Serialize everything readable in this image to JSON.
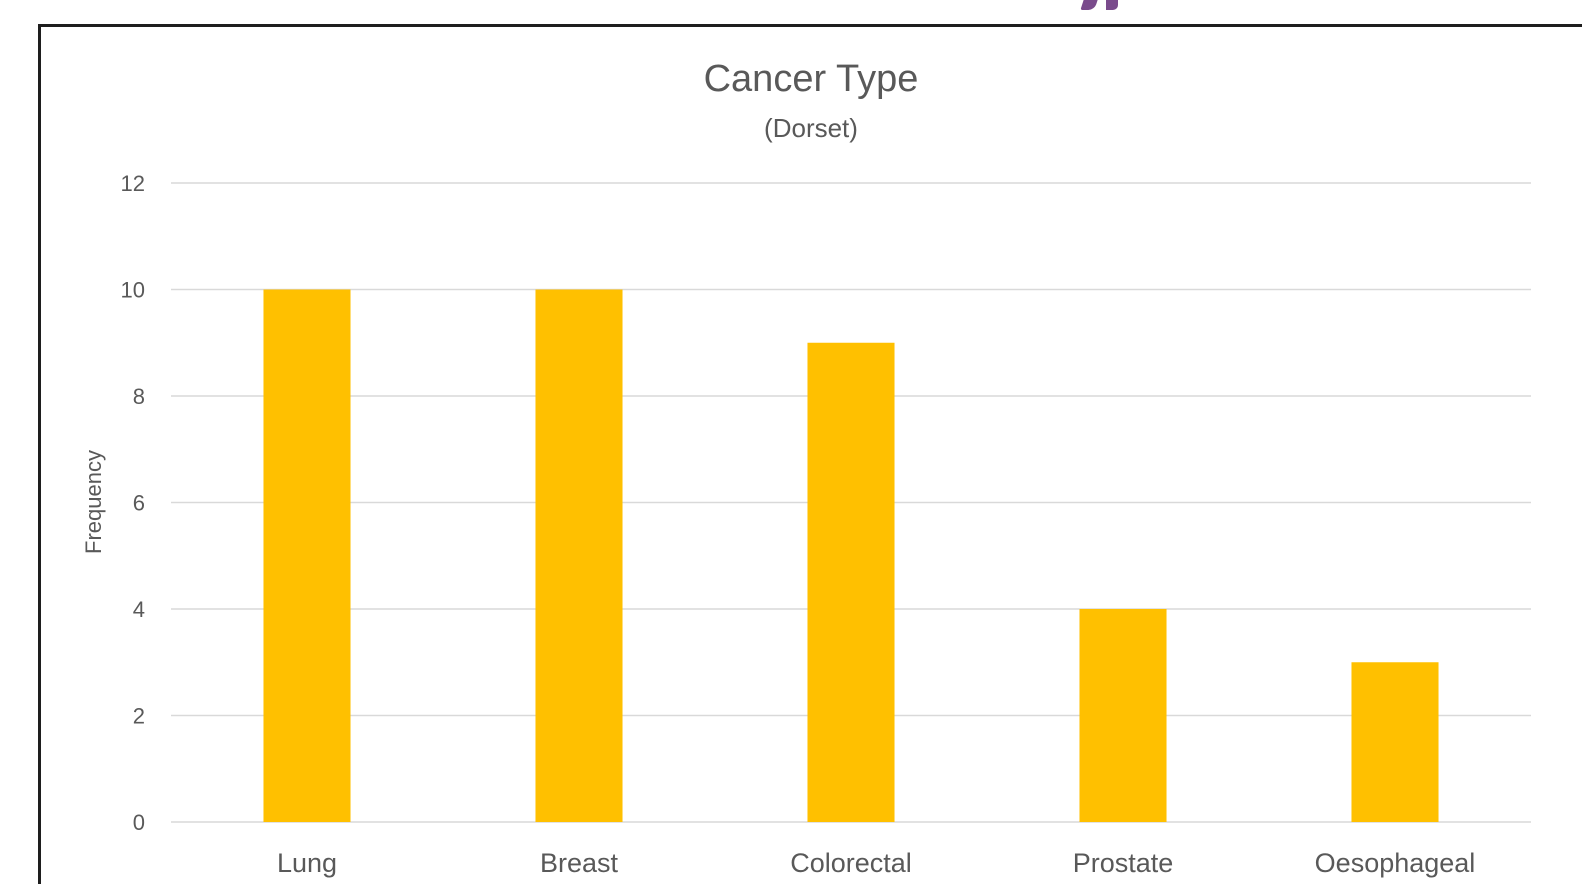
{
  "chart_data": {
    "type": "bar",
    "title": "Cancer Type",
    "subtitle": "(Dorset)",
    "xlabel": "",
    "ylabel": "Frequency",
    "categories": [
      "Lung",
      "Breast",
      "Colorectal",
      "Prostate",
      "Oesophageal"
    ],
    "values": [
      10,
      10,
      9,
      4,
      3
    ],
    "ylim": [
      0,
      12
    ],
    "yticks": [
      0,
      2,
      4,
      6,
      8,
      10,
      12
    ],
    "grid": true,
    "legend": "none",
    "bar_color": "#FFC000",
    "gridline_color": "#D9D9D9",
    "text_color": "#595959"
  },
  "header_fragment": {
    "color": "#7A4B8C"
  }
}
